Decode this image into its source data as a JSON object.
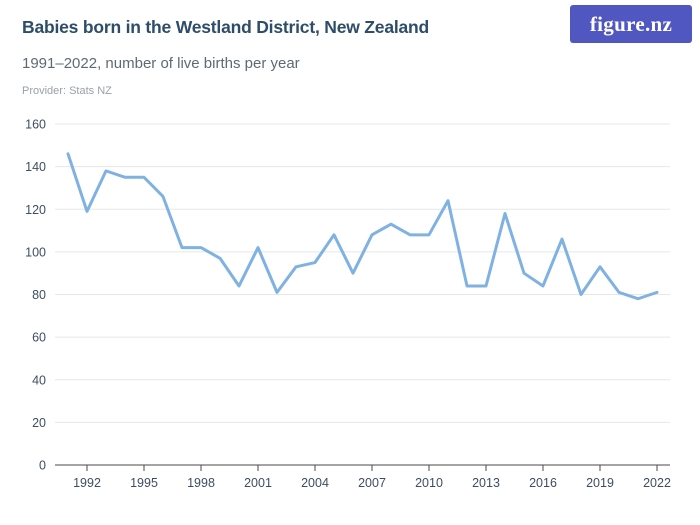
{
  "header": {
    "title": "Babies born in the Westland District, New Zealand",
    "subtitle": "1991–2022, number of live births per year",
    "provider": "Provider: Stats NZ"
  },
  "logo": {
    "text": "figure.nz",
    "bg_color": "#5057c0",
    "text_color": "#ffffff"
  },
  "colors": {
    "line": "#7fb2e2",
    "grid": "#e5e7e9",
    "axis": "#4a4a4a",
    "tick_label": "#3e4d63",
    "title": "#2d4d68",
    "subtitle": "#5e6a73",
    "provider": "#99a2a8"
  },
  "chart_data": {
    "type": "line",
    "title": "Babies born in the Westland District, New Zealand",
    "subtitle": "1991-2022, number of live births per year",
    "xlabel": "",
    "ylabel": "",
    "series_name": "Live births per year",
    "x": [
      1991,
      1992,
      1993,
      1994,
      1995,
      1996,
      1997,
      1998,
      1999,
      2000,
      2001,
      2002,
      2003,
      2004,
      2005,
      2006,
      2007,
      2008,
      2009,
      2010,
      2011,
      2012,
      2013,
      2014,
      2015,
      2016,
      2017,
      2018,
      2019,
      2020,
      2021,
      2022
    ],
    "values": [
      146,
      119,
      138,
      135,
      135,
      126,
      102,
      102,
      97,
      84,
      102,
      81,
      93,
      95,
      108,
      90,
      108,
      113,
      108,
      108,
      124,
      84,
      84,
      118,
      90,
      84,
      106,
      80,
      93,
      81,
      78,
      81
    ],
    "ylim": [
      0,
      160
    ],
    "y_ticks": [
      0,
      20,
      40,
      60,
      80,
      100,
      120,
      140,
      160
    ],
    "x_ticks": [
      1992,
      1995,
      1998,
      2001,
      2004,
      2007,
      2010,
      2013,
      2016,
      2019,
      2022
    ],
    "grid": "horizontal",
    "legend": "none"
  }
}
